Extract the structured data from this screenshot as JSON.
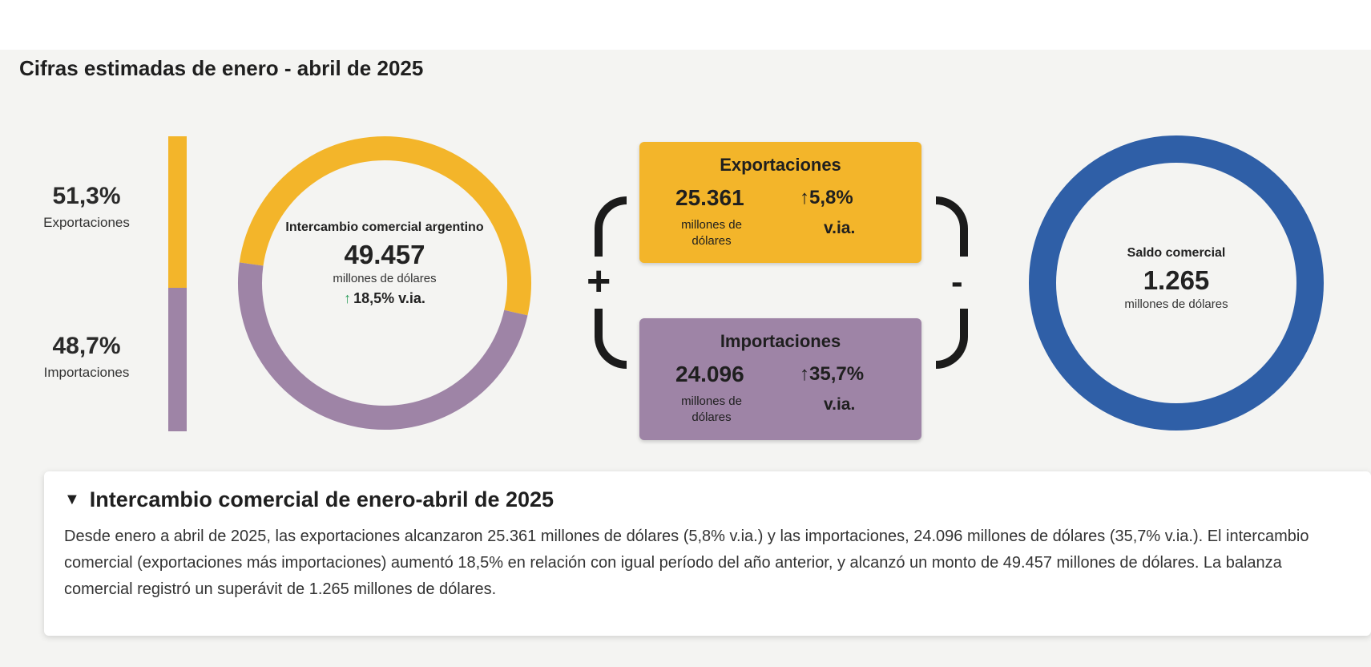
{
  "title": "Cifras estimadas de enero - abril de 2025",
  "shares": {
    "exports": {
      "value": "51,3%",
      "label": "Exportaciones",
      "fraction": 0.513
    },
    "imports": {
      "value": "48,7%",
      "label": "Importaciones",
      "fraction": 0.487
    }
  },
  "trade_ring": {
    "title": "Intercambio comercial argentino",
    "value": "49.457",
    "unit": "millones de dólares",
    "change": "18,5% v.ia."
  },
  "signs": {
    "plus": "+",
    "minus": "-"
  },
  "exports_card": {
    "title": "Exportaciones",
    "value": "25.361",
    "unit": "millones de dólares",
    "change": "5,8%",
    "change_suffix": "v.ia."
  },
  "imports_card": {
    "title": "Importaciones",
    "value": "24.096",
    "unit": "millones de dólares",
    "change": "35,7%",
    "change_suffix": "v.ia."
  },
  "balance_ring": {
    "title": "Saldo comercial",
    "value": "1.265",
    "unit": "millones de dólares"
  },
  "details": {
    "heading": "Intercambio comercial de enero-abril de 2025",
    "text": "Desde enero a abril de 2025, las exportaciones alcanzaron 25.361 millones de dólares (5,8% v.ia.) y las importaciones, 24.096 millones de dólares (35,7% v.ia.). El intercambio comercial (exportaciones más importaciones) aumentó 18,5% en relación con igual período del año anterior, y alcanzó un monto de 49.457 millones de dólares. La balanza comercial registró un superávit de 1.265 millones de dólares."
  },
  "icons": {
    "up_arrow": "↑",
    "disclosure": "▼"
  },
  "colors": {
    "exports": "#f3b52a",
    "imports": "#9e84a6",
    "balance": "#2f5fa7",
    "arrow": "#2e9e5c"
  }
}
